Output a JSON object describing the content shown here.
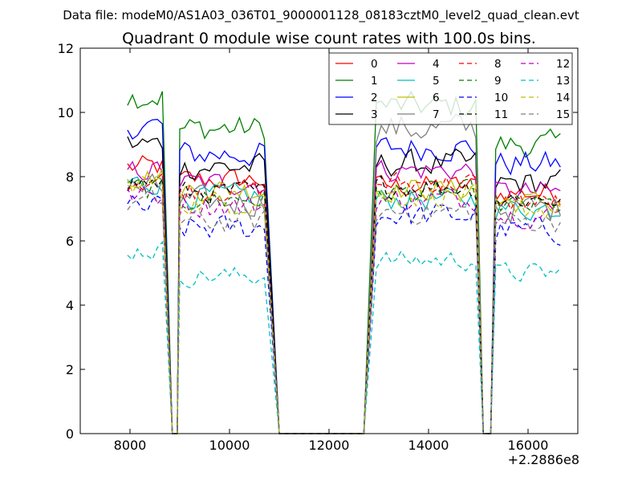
{
  "supertitle": "Data file: modeM0/AS1A03_036T01_9000001128_08183cztM0_level2_quad_clean.evt",
  "chart_data": {
    "type": "line",
    "title": "Quadrant 0 module wise count rates with 100.0s bins.",
    "xlabel": "",
    "ylabel": "",
    "x_offset_label": "+2.2886e8",
    "xlim": [
      7000,
      17000
    ],
    "ylim": [
      0,
      12
    ],
    "xticks": [
      8000,
      10000,
      12000,
      14000,
      16000
    ],
    "xtick_labels": [
      "8000",
      "10000",
      "12000",
      "14000",
      "16000"
    ],
    "yticks": [
      0,
      2,
      4,
      6,
      8,
      10,
      12
    ],
    "ytick_labels": [
      "0",
      "2",
      "4",
      "6",
      "8",
      "10",
      "12"
    ],
    "legend_position": "top-right",
    "legend_columns": 4,
    "segments": [
      [
        7950,
        8700
      ],
      [
        9000,
        10750
      ],
      [
        12950,
        14950
      ],
      [
        15350,
        16650
      ]
    ],
    "gaps": [
      [
        8850,
        8850
      ],
      [
        8950,
        8950
      ],
      [
        11000,
        12700
      ],
      [
        15150,
        15250
      ]
    ],
    "series": [
      {
        "name": "0",
        "color": "#ff0000",
        "style": "solid",
        "seg_means": [
          8.3,
          7.9,
          7.7,
          7.5
        ],
        "jitter": 0.35
      },
      {
        "name": "1",
        "color": "#007f00",
        "style": "solid",
        "seg_means": [
          10.5,
          9.5,
          10.2,
          9.0
        ],
        "jitter": 0.4
      },
      {
        "name": "2",
        "color": "#0000ff",
        "style": "solid",
        "seg_means": [
          9.6,
          8.7,
          8.9,
          8.4
        ],
        "jitter": 0.4
      },
      {
        "name": "3",
        "color": "#000000",
        "style": "solid",
        "seg_means": [
          9.0,
          8.3,
          8.4,
          7.8
        ],
        "jitter": 0.4
      },
      {
        "name": "4",
        "color": "#bf00bf",
        "style": "solid",
        "seg_means": [
          8.2,
          7.8,
          8.2,
          7.5
        ],
        "jitter": 0.35
      },
      {
        "name": "5",
        "color": "#00bfbf",
        "style": "solid",
        "seg_means": [
          7.8,
          7.4,
          7.3,
          7.0
        ],
        "jitter": 0.35
      },
      {
        "name": "6",
        "color": "#bfbf00",
        "style": "solid",
        "seg_means": [
          8.0,
          7.6,
          7.6,
          7.2
        ],
        "jitter": 0.35
      },
      {
        "name": "7",
        "color": "#7f7f7f",
        "style": "solid",
        "seg_means": [
          7.6,
          7.2,
          9.5,
          7.0
        ],
        "jitter": 0.45
      },
      {
        "name": "8",
        "color": "#ff0000",
        "style": "dashed",
        "seg_means": [
          7.9,
          7.6,
          7.8,
          7.2
        ],
        "jitter": 0.35
      },
      {
        "name": "9",
        "color": "#007f00",
        "style": "dashed",
        "seg_means": [
          7.6,
          7.3,
          7.5,
          7.1
        ],
        "jitter": 0.35
      },
      {
        "name": "10",
        "color": "#0000ff",
        "style": "dashed",
        "seg_means": [
          7.0,
          6.4,
          6.8,
          6.3
        ],
        "jitter": 0.4
      },
      {
        "name": "11",
        "color": "#000000",
        "style": "dashed",
        "seg_means": [
          7.8,
          7.5,
          7.7,
          7.3
        ],
        "jitter": 0.35
      },
      {
        "name": "12",
        "color": "#bf00bf",
        "style": "dashed",
        "seg_means": [
          7.4,
          7.1,
          7.3,
          6.8
        ],
        "jitter": 0.35
      },
      {
        "name": "13",
        "color": "#00bfbf",
        "style": "dashed",
        "seg_means": [
          5.7,
          4.9,
          5.4,
          5.0
        ],
        "jitter": 0.3
      },
      {
        "name": "14",
        "color": "#bfbf00",
        "style": "dashed",
        "seg_means": [
          7.8,
          7.2,
          7.4,
          7.0
        ],
        "jitter": 0.35
      },
      {
        "name": "15",
        "color": "#7f7f7f",
        "style": "dashed",
        "seg_means": [
          7.2,
          6.6,
          6.9,
          6.6
        ],
        "jitter": 0.35
      }
    ]
  }
}
